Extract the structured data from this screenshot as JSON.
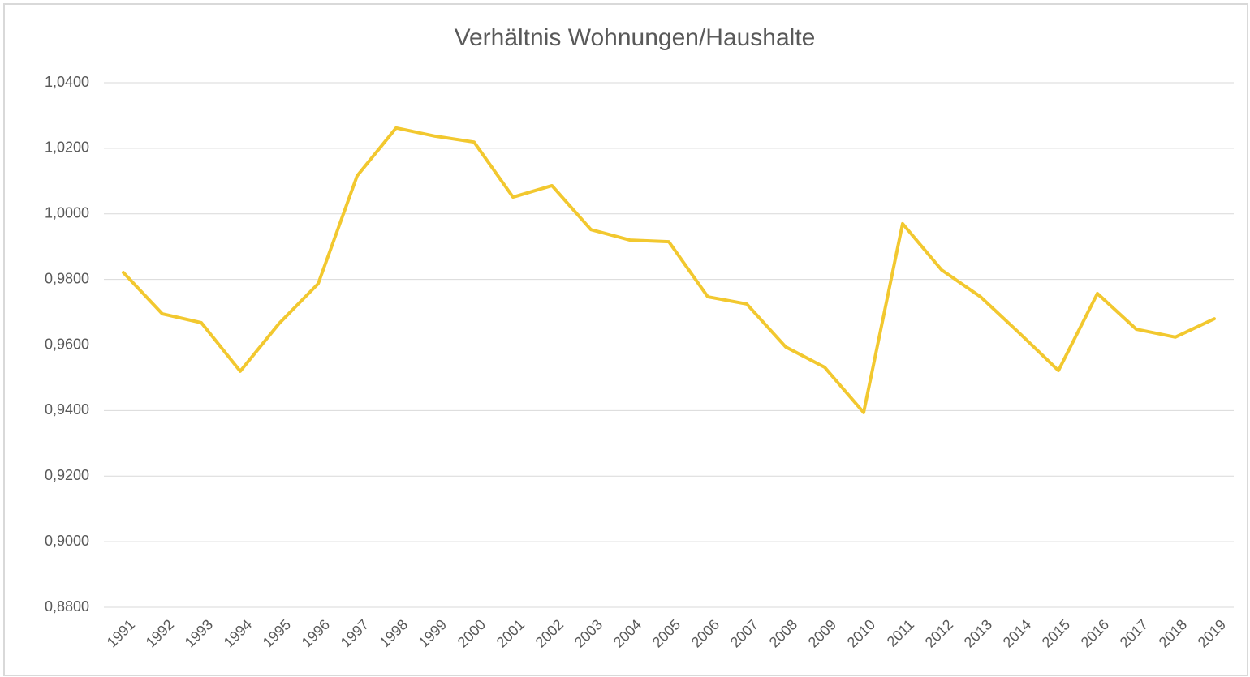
{
  "chart_data": {
    "type": "line",
    "title": "Verhältnis Wohnungen/Haushalte",
    "categories": [
      "1991",
      "1992",
      "1993",
      "1994",
      "1995",
      "1996",
      "1997",
      "1998",
      "1999",
      "2000",
      "2001",
      "2002",
      "2003",
      "2004",
      "2005",
      "2006",
      "2007",
      "2008",
      "2009",
      "2010",
      "2011",
      "2012",
      "2013",
      "2014",
      "2015",
      "2016",
      "2017",
      "2018",
      "2019"
    ],
    "series": [
      {
        "color": "#f2c82f",
        "values": [
          0.9821,
          0.9695,
          0.9668,
          0.952,
          0.9666,
          0.9787,
          1.0116,
          1.0262,
          1.0237,
          1.0219,
          1.0051,
          1.0086,
          0.9952,
          0.992,
          0.9915,
          0.9747,
          0.9725,
          0.9594,
          0.9532,
          0.9394,
          0.997,
          0.9829,
          0.9747,
          0.9636,
          0.9522,
          0.9757,
          0.9648,
          0.9624,
          0.968
        ]
      }
    ],
    "ylim": [
      0.88,
      1.04
    ],
    "yticks": [
      {
        "value": 0.88,
        "label": "0,8800"
      },
      {
        "value": 0.9,
        "label": "0,9000"
      },
      {
        "value": 0.92,
        "label": "0,9200"
      },
      {
        "value": 0.94,
        "label": "0,9400"
      },
      {
        "value": 0.96,
        "label": "0,9600"
      },
      {
        "value": 0.98,
        "label": "0,9800"
      },
      {
        "value": 1.0,
        "label": "1,0000"
      },
      {
        "value": 1.02,
        "label": "1,0200"
      },
      {
        "value": 1.04,
        "label": "1,0400"
      }
    ],
    "grid": true
  }
}
